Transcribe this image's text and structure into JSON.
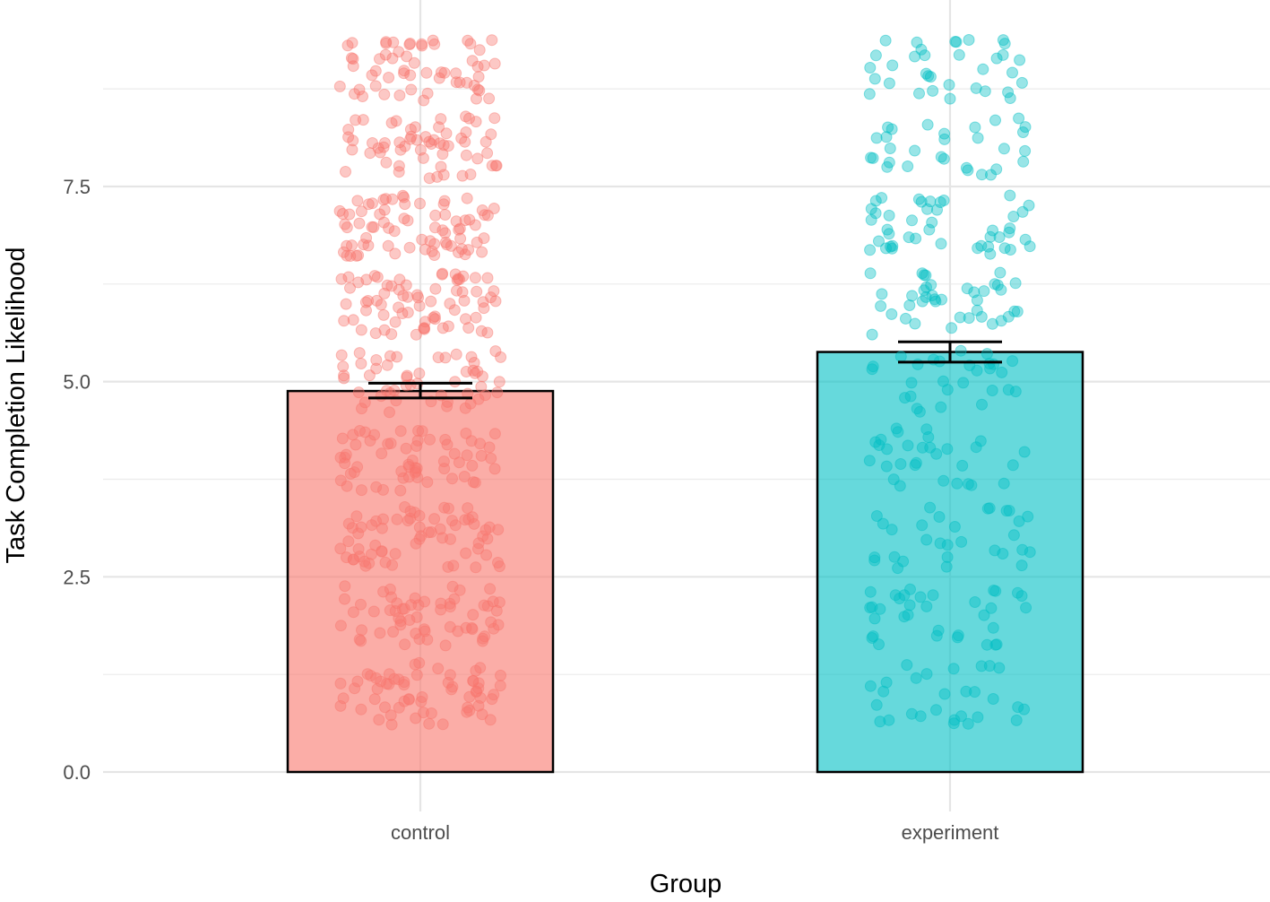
{
  "chart_data": {
    "type": "bar",
    "title": "",
    "xlabel": "Group",
    "ylabel": "Task Completion Likelihood",
    "categories": [
      "control",
      "experiment"
    ],
    "values": [
      4.88,
      5.38
    ],
    "error_bars": [
      [
        4.79,
        4.98
      ],
      [
        5.25,
        5.51
      ]
    ],
    "ylim": [
      0,
      9.5
    ],
    "yticks": [
      0,
      2.5,
      5,
      7.5
    ],
    "ytick_labels": [
      "0.0",
      "2.5",
      "5.0",
      "7.5"
    ],
    "grid": true,
    "legend": "none",
    "colors": {
      "control": "#F8766D",
      "experiment": "#00BFC4"
    },
    "jitter_points": {
      "description_levels": [
        1,
        2,
        3,
        4,
        5,
        6,
        7,
        8,
        9
      ],
      "vertical_jitter": 0.4,
      "counts_per_level": {
        "control": [
          62,
          60,
          66,
          62,
          52,
          72,
          74,
          60,
          58
        ],
        "experiment": [
          28,
          34,
          30,
          30,
          28,
          40,
          44,
          30,
          34
        ]
      }
    }
  }
}
